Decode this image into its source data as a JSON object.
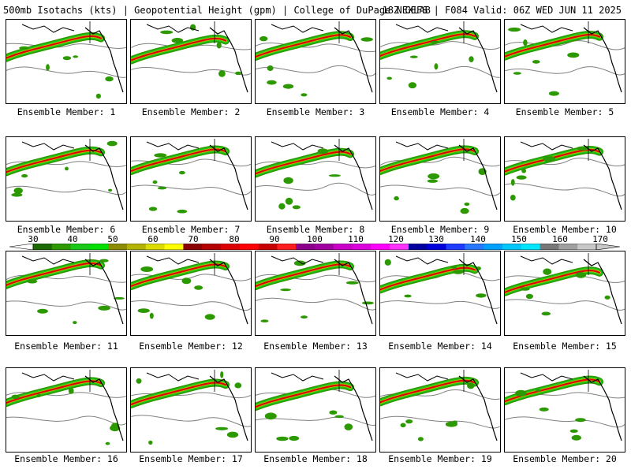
{
  "header": {
    "left_title": "500mb Isotachs (kts) | Geopotential Height (gpm) | College of DuPage NEXLAB",
    "right_title": "18Z GEFS | F084 Valid: 06Z WED JUN 11 2025"
  },
  "panels": [
    {
      "label": "Ensemble Member: 1"
    },
    {
      "label": "Ensemble Member: 2"
    },
    {
      "label": "Ensemble Member: 3"
    },
    {
      "label": "Ensemble Member: 4"
    },
    {
      "label": "Ensemble Member: 5"
    },
    {
      "label": "Ensemble Member: 6"
    },
    {
      "label": "Ensemble Member: 7"
    },
    {
      "label": "Ensemble Member: 8"
    },
    {
      "label": "Ensemble Member: 9"
    },
    {
      "label": "Ensemble Member: 10"
    },
    {
      "label": "Ensemble Member: 11"
    },
    {
      "label": "Ensemble Member: 12"
    },
    {
      "label": "Ensemble Member: 13"
    },
    {
      "label": "Ensemble Member: 14"
    },
    {
      "label": "Ensemble Member: 15"
    },
    {
      "label": "Ensemble Member: 16"
    },
    {
      "label": "Ensemble Member: 17"
    },
    {
      "label": "Ensemble Member: 18"
    },
    {
      "label": "Ensemble Member: 19"
    },
    {
      "label": "Ensemble Member: 20"
    }
  ],
  "colorbar": {
    "labels": [
      "30",
      "40",
      "50",
      "60",
      "70",
      "80",
      "90",
      "100",
      "110",
      "120",
      "130",
      "140",
      "150",
      "160",
      "170"
    ],
    "colors": [
      "#1b6b00",
      "#2c9900",
      "#19c819",
      "#00e000",
      "#8c8c00",
      "#b4b400",
      "#dcdc00",
      "#ffff00",
      "#8c0000",
      "#b40000",
      "#dc0000",
      "#ff0000",
      "#c80000",
      "#ff1e1e",
      "#8c008c",
      "#a000a0",
      "#c800c8",
      "#dc00dc",
      "#ff00ff",
      "#ff32ff",
      "#0000a0",
      "#0000dc",
      "#1e3cff",
      "#2878ff",
      "#00a0ff",
      "#00c8ff",
      "#00e6ff",
      "#787878",
      "#a0a0a0",
      "#c8c8c8"
    ]
  }
}
